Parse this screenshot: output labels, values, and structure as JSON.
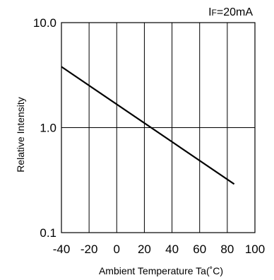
{
  "chart_data": {
    "type": "line",
    "condition_label": {
      "prefix": "I",
      "sub": "F",
      "suffix": "=20mA"
    },
    "title": "",
    "xlabel": "Ambient Temperature  Ta(˚C)",
    "ylabel": "Relative Intensity",
    "xlim": [
      -40,
      100
    ],
    "ylim": [
      0.1,
      10.0
    ],
    "y_scale": "log",
    "x_ticks": [
      "-40",
      "-20",
      "0",
      "20",
      "40",
      "60",
      "80",
      "100"
    ],
    "y_ticks": [
      "0.1",
      "1.0",
      "10.0"
    ],
    "grid": true,
    "series": [
      {
        "x": [
          -40,
          85
        ],
        "y": [
          3.8,
          0.29
        ]
      }
    ]
  }
}
